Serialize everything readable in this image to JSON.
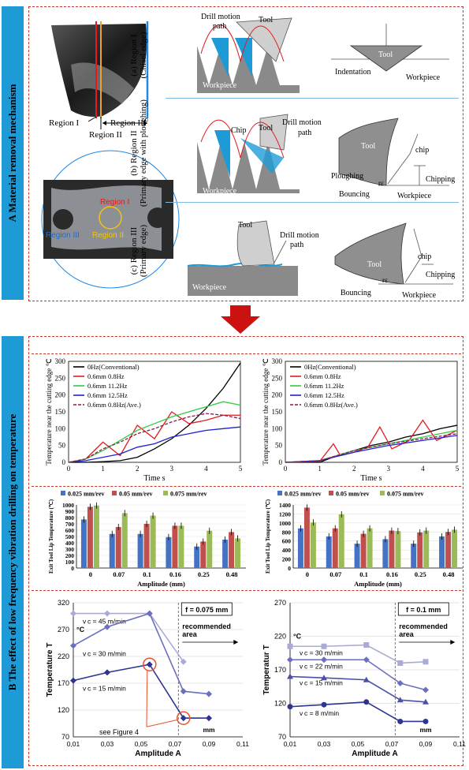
{
  "sectionA": {
    "label": "A   Material removal mechanism",
    "drill_regions": [
      "Region I",
      "Region II",
      "Region III"
    ],
    "photo_regions": [
      "Region I",
      "Region II",
      "Region III"
    ],
    "rows": [
      {
        "caption": "(a) Region I",
        "caption2": "(Chisel edge)",
        "labels": [
          "Drill motion",
          "path",
          "Tool",
          "Workpiece"
        ],
        "schematic": [
          "Tool",
          "Indentation",
          "Workpiece"
        ]
      },
      {
        "caption": "(b) Region II",
        "caption2": "(Primary edge with ploughing)",
        "labels": [
          "Chip",
          "Tool",
          "Drill motion",
          "path",
          "Workpiece"
        ],
        "schematic": [
          "Tool",
          "chip",
          "Ploughing",
          "Chipping",
          "Bouncing",
          "Workpiece",
          "rε"
        ]
      },
      {
        "caption": "(c) Region III",
        "caption2": "(Primary edge)",
        "labels": [
          "Tool",
          "Drill motion",
          "path",
          "Workpiece"
        ],
        "schematic": [
          "Tool",
          "chip",
          "Chipping",
          "Bouncing",
          "Workpiece",
          "rε"
        ]
      }
    ]
  },
  "sectionB": {
    "label": "B   The effect of low frequency vibration drilling on temperature"
  },
  "chart_data": [
    {
      "type": "line",
      "ylabel": "Temperature near the cutting edge ℃",
      "xlabel": "Time s",
      "xlim": [
        0,
        5
      ],
      "ylim": [
        0,
        300
      ],
      "xticks": [
        "0",
        "1",
        "2",
        "3",
        "4",
        "5"
      ],
      "yticks": [
        "0",
        "50",
        "100",
        "150",
        "200",
        "250",
        "300"
      ],
      "legend": [
        "0Hz(Conventional)",
        "0.6mm 0.8Hz",
        "0.6mm 11.2Hz",
        "0.6mm 12.5Hz",
        "0.6mm 0.8Hz(Ave.)"
      ],
      "colors": [
        "#000000",
        "#e41a1c",
        "#2ecc40",
        "#1f1fd6",
        "#8b1a4a"
      ],
      "series": [
        {
          "name": "0Hz(Conventional)",
          "x": [
            0,
            0.5,
            1,
            1.5,
            2,
            2.5,
            3,
            3.5,
            4,
            4.5,
            5
          ],
          "y": [
            0,
            0,
            2,
            5,
            15,
            40,
            70,
            110,
            160,
            220,
            295
          ]
        },
        {
          "name": "0.6mm 0.8Hz",
          "x": [
            0,
            0.5,
            1,
            1.5,
            2,
            2.5,
            3,
            3.5,
            4,
            4.5,
            5
          ],
          "y": [
            0,
            10,
            60,
            20,
            110,
            70,
            150,
            115,
            125,
            140,
            140
          ]
        },
        {
          "name": "0.6mm 11.2Hz",
          "x": [
            0,
            0.5,
            1,
            1.5,
            2,
            2.5,
            3,
            3.5,
            4,
            4.5,
            5
          ],
          "y": [
            0,
            10,
            35,
            65,
            95,
            115,
            135,
            150,
            165,
            180,
            170
          ]
        },
        {
          "name": "0.6mm 12.5Hz",
          "x": [
            0,
            0.5,
            1,
            1.5,
            2,
            2.5,
            3,
            3.5,
            4,
            4.5,
            5
          ],
          "y": [
            0,
            5,
            15,
            25,
            45,
            55,
            75,
            85,
            95,
            100,
            105
          ]
        },
        {
          "name": "0.6mm 0.8Hz(Ave.)",
          "x": [
            0,
            0.5,
            1,
            1.5,
            2,
            2.5,
            3,
            3.5,
            4,
            4.5,
            5
          ],
          "y": [
            0,
            10,
            40,
            60,
            85,
            100,
            120,
            135,
            145,
            140,
            130
          ]
        }
      ]
    },
    {
      "type": "line",
      "ylabel": "Temperature near the cutting edge ℃",
      "xlabel": "Time s",
      "xlim": [
        0,
        5
      ],
      "ylim": [
        0,
        300
      ],
      "xticks": [
        "0",
        "1",
        "2",
        "3",
        "4",
        "5"
      ],
      "yticks": [
        "0",
        "50",
        "100",
        "150",
        "200",
        "250",
        "300"
      ],
      "legend": [
        "0Hz(Conventional)",
        "0.6mm 0.8Hz",
        "0.6mm 11.2Hz",
        "0.6mm 12.5Hz",
        "0.6mm 0.8Hz(Ave.)"
      ],
      "colors": [
        "#000000",
        "#e41a1c",
        "#2ecc40",
        "#1f1fd6",
        "#8b1a4a"
      ],
      "series": [
        {
          "name": "0Hz(Conventional)",
          "x": [
            0,
            1,
            1.5,
            2,
            2.5,
            3,
            3.5,
            4,
            4.5,
            5
          ],
          "y": [
            0,
            0,
            20,
            35,
            50,
            60,
            75,
            85,
            100,
            110
          ]
        },
        {
          "name": "0.6mm 0.8Hz",
          "x": [
            0,
            1,
            1.4,
            1.6,
            2,
            2.4,
            2.75,
            3.1,
            3.6,
            4,
            4.4,
            5
          ],
          "y": [
            0,
            3,
            55,
            20,
            30,
            45,
            105,
            40,
            65,
            125,
            65,
            95
          ]
        },
        {
          "name": "0.6mm 11.2Hz",
          "x": [
            0,
            1,
            2,
            3,
            4,
            5
          ],
          "y": [
            0,
            5,
            35,
            55,
            75,
            95
          ]
        },
        {
          "name": "0.6mm 12.5Hz",
          "x": [
            0,
            1,
            2,
            3,
            4,
            5
          ],
          "y": [
            0,
            5,
            30,
            50,
            65,
            80
          ]
        },
        {
          "name": "0.6mm 0.8Hz(Ave.)",
          "x": [
            0,
            1,
            2,
            3,
            4,
            5
          ],
          "y": [
            0,
            5,
            35,
            55,
            70,
            85
          ]
        }
      ]
    },
    {
      "type": "bar",
      "ylabel": "Exit Tool Lip Temperature (℃)",
      "xlabel": "Amplitude (mm)",
      "ylim": [
        0,
        1000
      ],
      "yticks": [
        "0",
        "100",
        "200",
        "300",
        "400",
        "500",
        "600",
        "700",
        "800",
        "900",
        "1000"
      ],
      "categories": [
        "0",
        "0.07",
        "0.1",
        "0.16",
        "0.25",
        "0.48"
      ],
      "colors": [
        "#4472c4",
        "#c0504d",
        "#9bbb59"
      ],
      "series": [
        {
          "name": "0.025 mm/rev",
          "values": [
            770,
            540,
            540,
            490,
            340,
            450
          ]
        },
        {
          "name": "0.05 mm/rev",
          "values": [
            970,
            650,
            700,
            670,
            420,
            570
          ]
        },
        {
          "name": "0.075 mm/rev",
          "values": [
            990,
            870,
            830,
            670,
            590,
            470
          ]
        }
      ]
    },
    {
      "type": "bar",
      "ylabel": "Exit Tool Lip Temperature (℃)",
      "xlabel": "Amplitude (mm)",
      "ylim": [
        0,
        1400
      ],
      "yticks": [
        "0",
        "200",
        "400",
        "600",
        "800",
        "1000",
        "1200",
        "1400"
      ],
      "categories": [
        "0",
        "0.07",
        "0.1",
        "0.16",
        "0.25",
        "0.48"
      ],
      "colors": [
        "#4472c4",
        "#c0504d",
        "#9bbb59"
      ],
      "series": [
        {
          "name": "0.025 mm/rev",
          "values": [
            880,
            700,
            540,
            640,
            540,
            700
          ]
        },
        {
          "name": "0.05 mm/rev",
          "values": [
            1340,
            880,
            760,
            830,
            790,
            800
          ]
        },
        {
          "name": "0.075 mm/rev",
          "values": [
            1010,
            1190,
            880,
            820,
            830,
            850
          ]
        }
      ]
    },
    {
      "type": "line",
      "ylabel": "Temperature T",
      "xlabel": "Amplitude A",
      "unit_y": "°C",
      "unit_x": "mm",
      "xlim": [
        0.01,
        0.11
      ],
      "ylim": [
        70,
        320
      ],
      "xticks": [
        "0,01",
        "0,03",
        "0,05",
        "0,07",
        "0,09",
        "0,11"
      ],
      "yticks": [
        "70",
        "120",
        "170",
        "220",
        "270",
        "320"
      ],
      "box": "f = 0.075 mm",
      "recommended": "recommended\narea",
      "annotation": "see Figure 4",
      "series": [
        {
          "name": "v c = 45 m/min",
          "color": "#a9abd6",
          "x": [
            0.01,
            0.03,
            0.055,
            0.075
          ],
          "y": [
            300,
            300,
            300,
            210
          ]
        },
        {
          "name": "v c = 30 m/min",
          "color": "#6a6fbf",
          "x": [
            0.01,
            0.03,
            0.055,
            0.075,
            0.09
          ],
          "y": [
            240,
            275,
            300,
            155,
            150
          ]
        },
        {
          "name": "v c = 15 m/min",
          "color": "#2e3590",
          "x": [
            0.01,
            0.03,
            0.055,
            0.075,
            0.09
          ],
          "y": [
            175,
            190,
            205,
            105,
            105
          ]
        }
      ]
    },
    {
      "type": "line",
      "ylabel": "Temperatur T",
      "xlabel": "Amplitude A",
      "unit_y": "°C",
      "unit_x": "mm",
      "xlim": [
        0.01,
        0.11
      ],
      "ylim": [
        70,
        270
      ],
      "xticks": [
        "0,01",
        "0,03",
        "0,05",
        "0,07",
        "0,09",
        "0,11"
      ],
      "yticks": [
        "70",
        "120",
        "170",
        "220",
        "270"
      ],
      "box": "f = 0.1 mm",
      "recommended": "recommended\narea",
      "series": [
        {
          "name": "v c = 30 m/min",
          "color": "#a9abd6",
          "x": [
            0.01,
            0.03,
            0.055,
            0.075,
            0.09
          ],
          "y": [
            205,
            205,
            207,
            180,
            182
          ]
        },
        {
          "name": "v c = 22 m/min",
          "color": "#6a6fbf",
          "x": [
            0.01,
            0.03,
            0.055,
            0.075,
            0.09
          ],
          "y": [
            185,
            185,
            185,
            150,
            140
          ]
        },
        {
          "name": "v c = 15 m/min",
          "color": "#4a4fa8",
          "x": [
            0.01,
            0.03,
            0.055,
            0.075,
            0.09
          ],
          "y": [
            160,
            158,
            155,
            125,
            122
          ]
        },
        {
          "name": "v c = 8 m/min",
          "color": "#2e3590",
          "x": [
            0.01,
            0.03,
            0.055,
            0.075,
            0.09
          ],
          "y": [
            115,
            118,
            122,
            93,
            93
          ]
        }
      ]
    }
  ]
}
